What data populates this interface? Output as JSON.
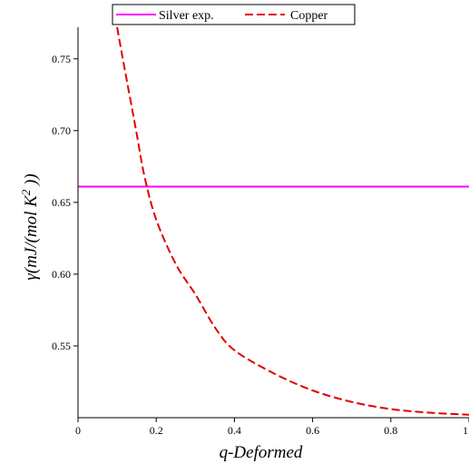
{
  "chart_data": {
    "type": "line",
    "title": "",
    "xlabel": "q-Deformed",
    "ylabel": {
      "text": "γ(mJ/(mol K",
      "superscript": "2",
      "suffix": " ))"
    },
    "xlim": [
      0,
      1
    ],
    "ylim": [
      0.5,
      0.772
    ],
    "x_ticks": [
      0,
      0.2,
      0.4,
      0.6,
      0.8,
      1
    ],
    "x_tick_labels": [
      "0",
      "0.2",
      "0.4",
      "0.6",
      "0.8",
      "1"
    ],
    "y_ticks": [
      0.55,
      0.6,
      0.65,
      0.7,
      0.75
    ],
    "y_tick_labels": [
      "0.55",
      "0.60",
      "0.65",
      "0.70",
      "0.75"
    ],
    "grid": false,
    "legend": {
      "placement": "top-center"
    },
    "series": [
      {
        "name": "Silver exp.",
        "color": "#ff00ff",
        "style": "solid",
        "x": [
          0,
          1
        ],
        "y": [
          0.661,
          0.661
        ]
      },
      {
        "name": "Copper",
        "color": "#e00000",
        "style": "dashed",
        "x": [
          0.1,
          0.12,
          0.15,
          0.17,
          0.2,
          0.25,
          0.3,
          0.35,
          0.4,
          0.5,
          0.6,
          0.7,
          0.8,
          0.9,
          1.0
        ],
        "y": [
          0.772,
          0.742,
          0.698,
          0.668,
          0.638,
          0.607,
          0.586,
          0.563,
          0.547,
          0.531,
          0.519,
          0.511,
          0.506,
          0.5035,
          0.502
        ]
      }
    ]
  }
}
